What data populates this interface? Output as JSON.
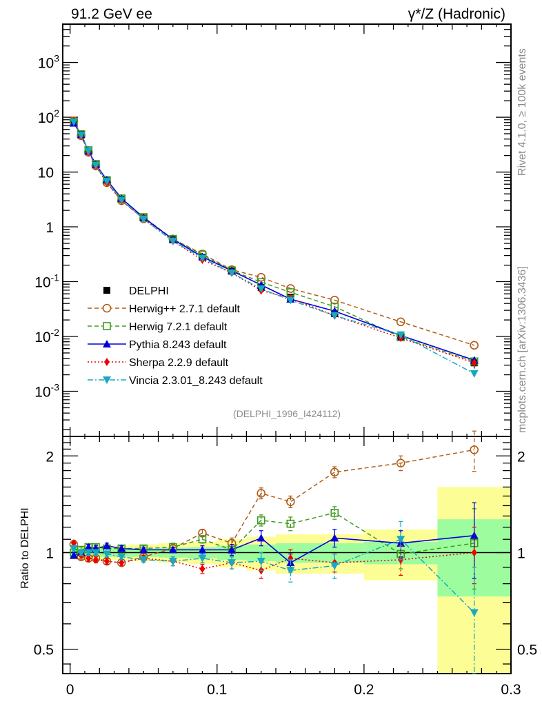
{
  "chart_data": [
    {
      "type": "line",
      "panel": "main",
      "title_left": "91.2 GeV ee",
      "title_right": "γ*/Z (Hadronic)",
      "annotation": "(DELPHI_1996_I424112)",
      "side_text_top": "Rivet 4.1.0, ≥ 100k events",
      "side_text_bottom": "mcplots.cern.ch [arXiv:1306.3436]",
      "yscale": "log",
      "ylim": [
        0.00015,
        5000
      ],
      "xlim": [
        -0.005,
        0.3
      ],
      "yticks": [
        {
          "value": 0.001,
          "label": "10⁻³",
          "base": "10",
          "exp": "-3"
        },
        {
          "value": 0.01,
          "label": "10⁻²",
          "base": "10",
          "exp": "-2"
        },
        {
          "value": 0.1,
          "label": "10⁻¹",
          "base": "10",
          "exp": "-1"
        },
        {
          "value": 1,
          "label": "1",
          "base": "1",
          "exp": ""
        },
        {
          "value": 10,
          "label": "10",
          "base": "10",
          "exp": ""
        },
        {
          "value": 100,
          "label": "10²",
          "base": "10",
          "exp": "2"
        },
        {
          "value": 1000,
          "label": "10³",
          "base": "10",
          "exp": "3"
        }
      ],
      "x": [
        0.0025,
        0.0075,
        0.0125,
        0.0175,
        0.025,
        0.035,
        0.05,
        0.07,
        0.09,
        0.11,
        0.13,
        0.15,
        0.18,
        0.225,
        0.275
      ],
      "data": {
        "name": "DELPHI",
        "values": [
          80,
          48,
          24,
          13.5,
          6.9,
          3.2,
          1.45,
          0.58,
          0.28,
          0.155,
          0.078,
          0.052,
          0.026,
          0.0097,
          0.0033
        ],
        "errors": [
          2,
          1.2,
          0.6,
          0.4,
          0.2,
          0.1,
          0.05,
          0.025,
          0.015,
          0.01,
          0.007,
          0.005,
          0.003,
          0.0015,
          0.0007
        ]
      },
      "legend": {
        "placement": "center-left",
        "entries": [
          {
            "label": "DELPHI",
            "color": "#000000",
            "marker": "square-filled",
            "line": "none"
          },
          {
            "label": "Herwig++ 2.7.1 default",
            "color": "#b05c14",
            "marker": "circle-open",
            "line": "dashed"
          },
          {
            "label": "Herwig 7.2.1 default",
            "color": "#3f9a1e",
            "marker": "square-open",
            "line": "dashed"
          },
          {
            "label": "Pythia 8.243 default",
            "color": "#0000dd",
            "marker": "triangle-up",
            "line": "solid"
          },
          {
            "label": "Sherpa 2.2.9 default",
            "color": "#ee0000",
            "marker": "diamond",
            "line": "dotted"
          },
          {
            "label": "Vincia 2.3.01_8.243 default",
            "color": "#17a9c2",
            "marker": "triangle-down",
            "line": "dashdot"
          }
        ]
      },
      "series": [
        {
          "name": "Herwig++ 2.7.1 default",
          "values": [
            86,
            46,
            23,
            13,
            6.4,
            3.0,
            1.4,
            0.6,
            0.32,
            0.165,
            0.12,
            0.075,
            0.046,
            0.0185,
            0.0069
          ]
        },
        {
          "name": "Herwig 7.2.1 default",
          "values": [
            82,
            49,
            25,
            14,
            7.1,
            3.3,
            1.5,
            0.6,
            0.31,
            0.16,
            0.098,
            0.064,
            0.035,
            0.0097,
            0.0035
          ]
        },
        {
          "name": "Pythia 8.243 default",
          "values": [
            78,
            48,
            24,
            13.7,
            7.2,
            3.3,
            1.48,
            0.59,
            0.285,
            0.158,
            0.087,
            0.048,
            0.029,
            0.0104,
            0.0037
          ]
        },
        {
          "name": "Sherpa 2.2.9 default",
          "values": [
            86,
            46,
            23,
            12.8,
            6.4,
            3.0,
            1.4,
            0.55,
            0.25,
            0.145,
            0.069,
            0.05,
            0.024,
            0.0094,
            0.0033
          ]
        },
        {
          "name": "Vincia 2.3.01_8.243 default",
          "values": [
            82,
            47,
            24,
            13.3,
            6.8,
            3.1,
            1.38,
            0.55,
            0.27,
            0.145,
            0.074,
            0.046,
            0.024,
            0.0107,
            0.0021
          ]
        }
      ]
    },
    {
      "type": "line",
      "panel": "ratio",
      "ylabel": "Ratio to DELPHI",
      "ylim": [
        0.42,
        2.3
      ],
      "yscale": "log",
      "yticks": [
        {
          "value": 0.5,
          "label": "0.5"
        },
        {
          "value": 1,
          "label": "1"
        },
        {
          "value": 2,
          "label": "2"
        }
      ],
      "xlim": [
        -0.005,
        0.3
      ],
      "xticks": [
        {
          "value": 0,
          "label": "0"
        },
        {
          "value": 0.1,
          "label": "0.1"
        },
        {
          "value": 0.2,
          "label": "0.2"
        },
        {
          "value": 0.3,
          "label": "0.3"
        }
      ],
      "bins": [
        [
          0,
          0.005
        ],
        [
          0.005,
          0.01
        ],
        [
          0.01,
          0.015
        ],
        [
          0.015,
          0.02
        ],
        [
          0.02,
          0.03
        ],
        [
          0.03,
          0.04
        ],
        [
          0.04,
          0.06
        ],
        [
          0.06,
          0.08
        ],
        [
          0.08,
          0.1
        ],
        [
          0.1,
          0.12
        ],
        [
          0.12,
          0.14
        ],
        [
          0.14,
          0.16
        ],
        [
          0.16,
          0.2
        ],
        [
          0.2,
          0.25
        ],
        [
          0.25,
          0.3
        ]
      ],
      "band_stat": [
        0.03,
        0.03,
        0.03,
        0.03,
        0.03,
        0.03,
        0.03,
        0.035,
        0.04,
        0.05,
        0.06,
        0.07,
        0.07,
        0.08,
        0.27
      ],
      "band_total": [
        0.05,
        0.05,
        0.05,
        0.05,
        0.05,
        0.05,
        0.06,
        0.07,
        0.08,
        0.1,
        0.12,
        0.14,
        0.14,
        0.18,
        0.6
      ],
      "series": [
        {
          "name": "Herwig++ 2.7.1 default",
          "values": [
            1.06,
            0.97,
            0.96,
            0.96,
            0.94,
            0.93,
            0.97,
            1.03,
            1.15,
            1.07,
            1.53,
            1.44,
            1.78,
            1.9,
            2.09
          ],
          "errors": [
            0.02,
            0.02,
            0.02,
            0.02,
            0.02,
            0.02,
            0.02,
            0.03,
            0.03,
            0.04,
            0.06,
            0.06,
            0.07,
            0.1,
            0.3
          ]
        },
        {
          "name": "Herwig 7.2.1 default",
          "values": [
            1.0,
            1.02,
            1.04,
            1.04,
            1.03,
            1.03,
            1.03,
            1.04,
            1.1,
            1.02,
            1.26,
            1.23,
            1.33,
            0.99,
            1.07
          ],
          "errors": [
            0.02,
            0.02,
            0.02,
            0.02,
            0.02,
            0.02,
            0.02,
            0.03,
            0.03,
            0.04,
            0.05,
            0.06,
            0.06,
            0.1,
            0.3
          ]
        },
        {
          "name": "Pythia 8.243 default",
          "values": [
            0.98,
            1.0,
            1.04,
            1.03,
            1.05,
            1.03,
            1.02,
            1.02,
            1.02,
            1.02,
            1.11,
            0.93,
            1.11,
            1.07,
            1.13
          ],
          "errors": [
            0.02,
            0.02,
            0.02,
            0.02,
            0.02,
            0.02,
            0.02,
            0.02,
            0.03,
            0.04,
            0.06,
            0.06,
            0.07,
            0.1,
            0.3
          ]
        },
        {
          "name": "Sherpa 2.2.9 default",
          "values": [
            1.07,
            0.98,
            0.96,
            0.95,
            0.94,
            0.93,
            0.96,
            0.94,
            0.89,
            0.93,
            0.88,
            0.96,
            0.93,
            0.95,
            1.0
          ],
          "errors": [
            0.02,
            0.02,
            0.02,
            0.02,
            0.02,
            0.02,
            0.02,
            0.03,
            0.03,
            0.04,
            0.05,
            0.06,
            0.06,
            0.1,
            0.2
          ]
        },
        {
          "name": "Vincia 2.3.01_8.243 default",
          "values": [
            1.03,
            1.0,
            1.0,
            1.0,
            0.99,
            0.97,
            0.95,
            0.94,
            0.96,
            0.93,
            0.94,
            0.88,
            0.91,
            1.1,
            0.65
          ],
          "errors": [
            0.02,
            0.02,
            0.02,
            0.02,
            0.02,
            0.02,
            0.02,
            0.03,
            0.03,
            0.04,
            0.06,
            0.07,
            0.08,
            0.15,
            0.25
          ]
        }
      ]
    }
  ],
  "colors": {
    "band_stat": "#9dfc9d",
    "band_total": "#fdfd95",
    "axis": "#000000",
    "annotation": "#8c8c8c"
  }
}
